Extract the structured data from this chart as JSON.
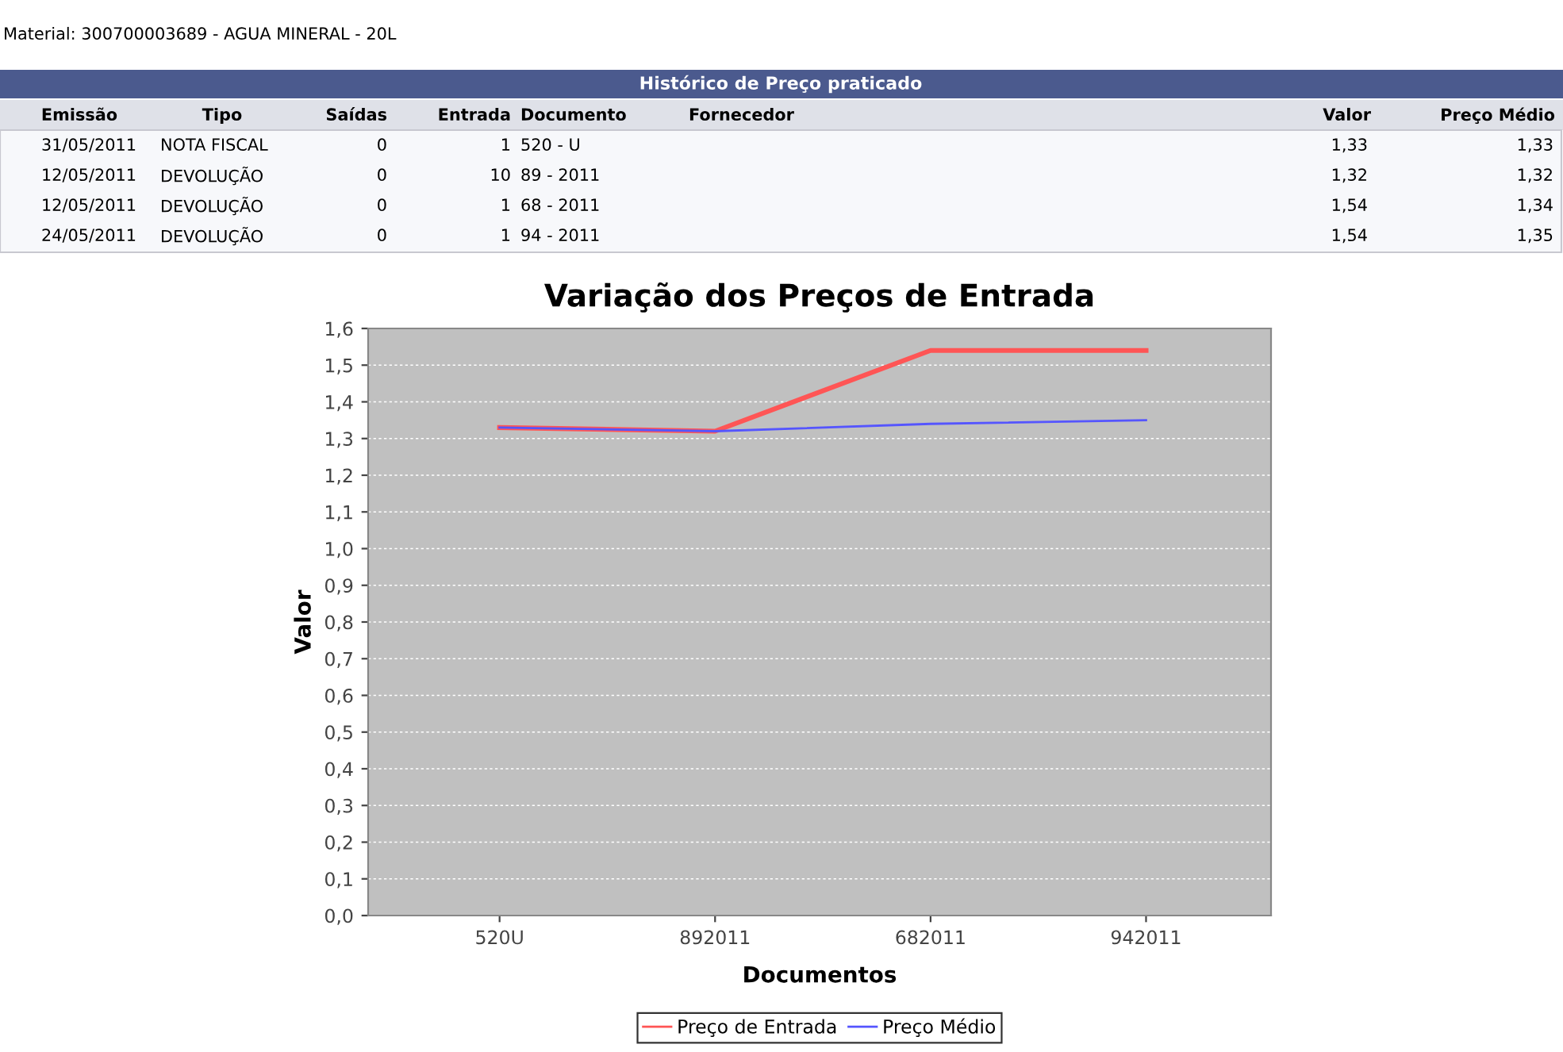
{
  "chart_data": {
    "type": "line",
    "title": "Variação dos Preços de Entrada",
    "xlabel": "Documentos",
    "ylabel": "Valor",
    "categories": [
      "520U",
      "892011",
      "682011",
      "942011"
    ],
    "series": [
      {
        "name": "Preço de Entrada",
        "color": "#ff5555",
        "values": [
          1.33,
          1.32,
          1.54,
          1.54
        ]
      },
      {
        "name": "Preço Médio",
        "color": "#5555ff",
        "values": [
          1.33,
          1.32,
          1.34,
          1.35
        ]
      }
    ],
    "ylim": [
      0,
      1.6
    ],
    "yticks": [
      {
        "value": 0,
        "label": "0,0"
      },
      {
        "value": 0.1,
        "label": "0,1"
      },
      {
        "value": 0.2,
        "label": "0,2"
      },
      {
        "value": 0.3,
        "label": "0,3"
      },
      {
        "value": 0.4,
        "label": "0,4"
      },
      {
        "value": 0.5,
        "label": "0,5"
      },
      {
        "value": 0.6,
        "label": "0,6"
      },
      {
        "value": 0.7,
        "label": "0,7"
      },
      {
        "value": 0.8,
        "label": "0,8"
      },
      {
        "value": 0.9,
        "label": "0,9"
      },
      {
        "value": 1.0,
        "label": "1,0"
      },
      {
        "value": 1.1,
        "label": "1,1"
      },
      {
        "value": 1.2,
        "label": "1,2"
      },
      {
        "value": 1.3,
        "label": "1,3"
      },
      {
        "value": 1.4,
        "label": "1,4"
      },
      {
        "value": 1.5,
        "label": "1,5"
      },
      {
        "value": 1.6,
        "label": "1,6"
      }
    ],
    "grid": "y",
    "legend": "bottom",
    "marker": "none",
    "line_style": "solid",
    "annotations": [
      "Material: 300700003689 - AGUA MINERAL - 20L",
      "Histórico de Preço praticado",
      "Emissão",
      "Tipo",
      "Saídas",
      "Entrada",
      "Documento",
      "Fornecedor",
      "Valor",
      "Preço Médio",
      "31/05/2011",
      "NOTA FISCAL",
      "0",
      "1",
      "520 - U",
      "1,33",
      "1,33",
      "12/05/2011",
      "DEVOLUÇÃO",
      "0",
      "10",
      "89 - 2011",
      "1,32",
      "1,32",
      "12/05/2011",
      "DEVOLUÇÃO",
      "0",
      "1",
      "68 - 2011",
      "1,54",
      "1,34",
      "24/05/2011",
      "DEVOLUÇÃO",
      "0",
      "1",
      "94 - 2011",
      "1,54",
      "1,35"
    ]
  }
}
